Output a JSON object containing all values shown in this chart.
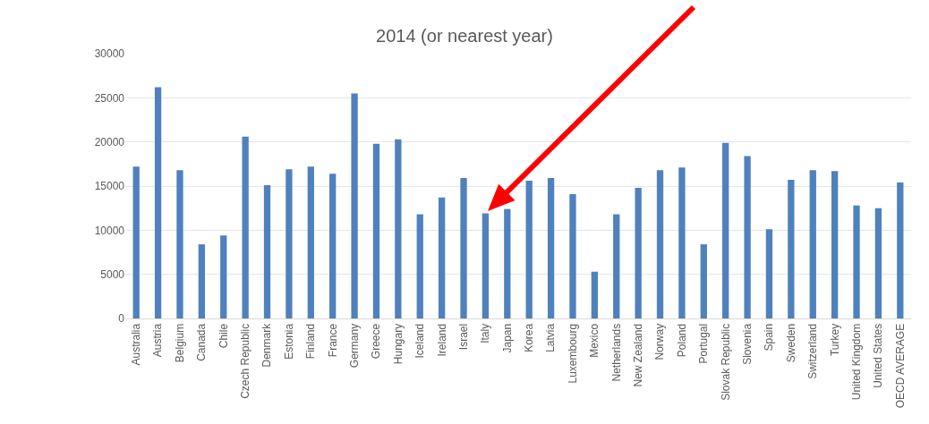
{
  "chart_data": {
    "type": "bar",
    "title": "2014 (or nearest year)",
    "categories": [
      "Australia",
      "Austria",
      "Belgium",
      "Canada",
      "Chile",
      "Czech Republic",
      "Denmark",
      "Estonia",
      "Finland",
      "France",
      "Germany",
      "Greece",
      "Hungary",
      "Iceland",
      "Ireland",
      "Israel",
      "Italy",
      "Japan",
      "Korea",
      "Latvia",
      "Luxembourg",
      "Mexico",
      "Netherlands",
      "New Zealand",
      "Norway",
      "Poland",
      "Portugal",
      "Slovak Republic",
      "Slovenia",
      "Spain",
      "Sweden",
      "Switzerland",
      "Turkey",
      "United Kingdom",
      "United States",
      "OECD AVERAGE"
    ],
    "values": [
      17200,
      26200,
      16800,
      8400,
      9400,
      20600,
      15100,
      16900,
      17200,
      16400,
      25500,
      19800,
      20300,
      11800,
      13700,
      15900,
      11900,
      12400,
      15600,
      15900,
      14100,
      5300,
      11800,
      14800,
      16800,
      17100,
      8400,
      19900,
      18400,
      10100,
      15700,
      16800,
      16700,
      12800,
      12500,
      15400
    ],
    "color": "#4f81bd",
    "ylim": [
      0,
      30000
    ],
    "yticks": [
      0,
      5000,
      10000,
      15000,
      20000,
      25000,
      30000
    ],
    "grid": "y"
  }
}
